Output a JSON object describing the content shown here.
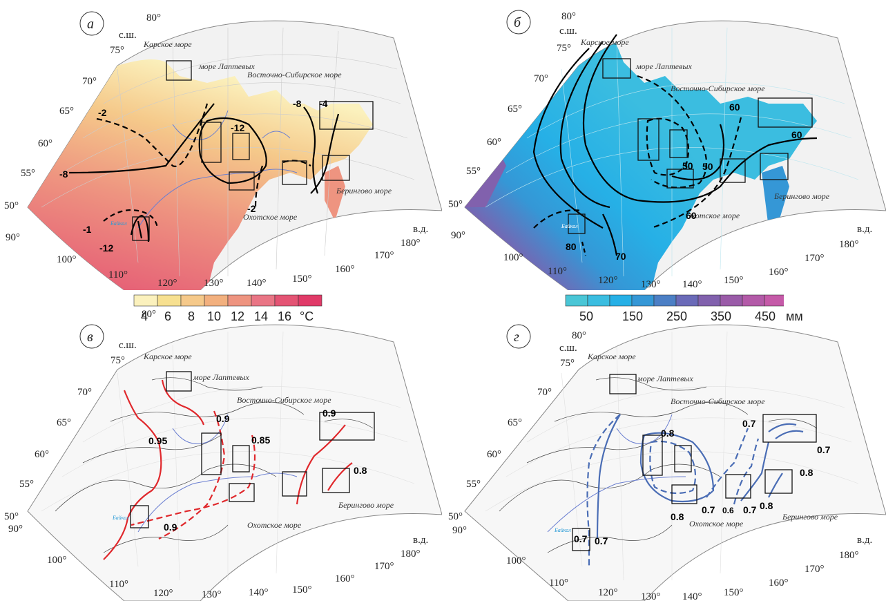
{
  "panels": [
    {
      "letter": "а",
      "lat_labels": [
        "80°",
        "75°",
        "70°",
        "65°",
        "60°",
        "55°",
        "50°"
      ],
      "lon_labels": [
        "90°",
        "100°",
        "110°",
        "120°",
        "130°",
        "140°",
        "150°",
        "160°",
        "170°",
        "180°"
      ],
      "nl": "с.ш.",
      "el": "в.д.",
      "seas": [
        "Карское море",
        "море Лаптевых",
        "Восточно-Сибирское море",
        "Охотское море",
        "Берингово море",
        "Байкал"
      ],
      "isolines": [
        "-2",
        "-8",
        "-4",
        "-12",
        "-8",
        "-2",
        "-1",
        "-12"
      ]
    },
    {
      "letter": "б",
      "lat_labels": [
        "80°",
        "75°",
        "70°",
        "65°",
        "60°",
        "55°",
        "50°"
      ],
      "lon_labels": [
        "90°",
        "100°",
        "110°",
        "120°",
        "130°",
        "140°",
        "150°",
        "160°",
        "170°",
        "180°"
      ],
      "nl": "с.ш.",
      "el": "в.д.",
      "seas": [
        "Карское море",
        "море Лаптевых",
        "Восточно-Сибирское море",
        "Охотское море",
        "Берингово море",
        "Байкал"
      ],
      "isolines": [
        "60",
        "60",
        "50",
        "50",
        "60",
        "80",
        "70"
      ]
    },
    {
      "letter": "в",
      "lat_labels": [
        "80°",
        "75°",
        "70°",
        "65°",
        "60°",
        "55°",
        "50°"
      ],
      "lon_labels": [
        "90°",
        "100°",
        "110°",
        "120°",
        "130°",
        "140°",
        "150°",
        "160°",
        "170°",
        "180°"
      ],
      "nl": "с.ш.",
      "el": "в.д.",
      "seas": [
        "Карское море",
        "море Лаптевых",
        "Восточно-Сибирское море",
        "Охотское море",
        "Берингово море",
        "Байкал"
      ],
      "isolines": [
        "0.95",
        "0.9",
        "0.85",
        "0.9",
        "0.8",
        "0.9"
      ]
    },
    {
      "letter": "г",
      "lat_labels": [
        "80°",
        "75°",
        "70°",
        "65°",
        "60°",
        "55°",
        "50°"
      ],
      "lon_labels": [
        "90°",
        "100°",
        "110°",
        "120°",
        "130°",
        "140°",
        "150°",
        "160°",
        "170°",
        "180°"
      ],
      "nl": "с.ш.",
      "el": "в.д.",
      "seas": [
        "Карское море",
        "море Лаптевых",
        "Восточно-Сибирское море",
        "Охотское море",
        "Берингово море",
        "Байкал"
      ],
      "isolines": [
        "0.8",
        "0.7",
        "0.7",
        "0.8",
        "0.8",
        "0.7",
        "0.6",
        "0.7",
        "0.8",
        "0.7",
        "0.7"
      ]
    }
  ],
  "temp_scale": {
    "ticks": [
      "4",
      "6",
      "8",
      "10",
      "12",
      "14",
      "16"
    ],
    "unit": "°C",
    "colors": [
      "#fbf1bd",
      "#f7e090",
      "#f5c98a",
      "#f2b07e",
      "#ee9480",
      "#e97585",
      "#e45474",
      "#e03a68"
    ]
  },
  "precip_scale": {
    "ticks": [
      "50",
      "150",
      "250",
      "350",
      "450"
    ],
    "unit": "мм",
    "colors": [
      "#4ac6d6",
      "#3bbde0",
      "#26b0e6",
      "#3597d6",
      "#4c7fc5",
      "#6a6ab8",
      "#8161ad",
      "#9a5ba8",
      "#b35aa8",
      "#c55aa8"
    ]
  },
  "colors": {
    "temp_isoline": "#000000",
    "precip_isoline": "#000000",
    "r_isoline_panel_v": "#e0282c",
    "r_isoline_panel_g": "#4a6db5",
    "river": "#6b7fd1",
    "land_blank": "#f2f2f2"
  }
}
